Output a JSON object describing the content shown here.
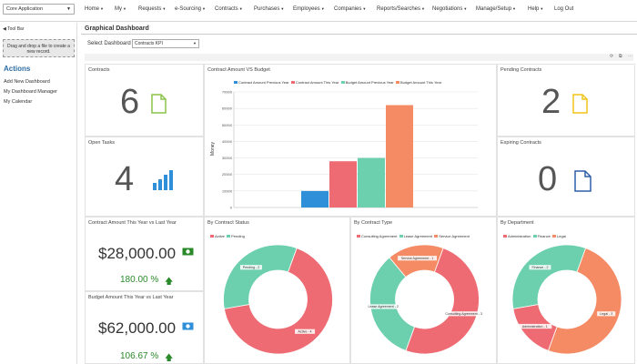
{
  "topbar": {
    "app_select": "Core Application",
    "nav": [
      "Home",
      "My",
      "Requests",
      "e-Sourcing",
      "Contracts",
      "Purchases",
      "Employees",
      "Companies",
      "Reports/Searches",
      "Negotiations",
      "Manage/Setup",
      "Help",
      "Log Out"
    ]
  },
  "sidebar": {
    "toolbar_label": "◀ Tool Bar",
    "dropzone_text": "Drag and drop a file to create a new record.",
    "actions_title": "Actions",
    "links": [
      "Add New Dashboard",
      "My Dashboard Manager",
      "My Calendar"
    ]
  },
  "main": {
    "title": "Graphical Dashboard",
    "select_label": "Select Dashboard",
    "select_value": "Contracts KPI"
  },
  "kpis": {
    "contracts": {
      "title": "Contracts",
      "value": "6"
    },
    "open_tasks": {
      "title": "Open Tasks",
      "value": "4"
    },
    "pending": {
      "title": "Pending Contracts",
      "value": "2"
    },
    "expiring": {
      "title": "Expiring Contracts",
      "value": "0"
    },
    "amount": {
      "title": "Contract Amount This Year vs Last Year",
      "value": "$28,000.00",
      "pct": "180.00 %"
    },
    "budget": {
      "title": "Budget Amount This Year vs Last Year",
      "value": "$62,000.00",
      "pct": "106.67 %"
    }
  },
  "colors": {
    "blue": "#2f8fd8",
    "red": "#ee6b73",
    "teal": "#6ccfae",
    "orange": "#f58b64",
    "green": "#2a8a2a"
  },
  "chart_data": [
    {
      "type": "bar",
      "title": "Contract Amount VS Budget",
      "ylabel": "Money",
      "ylim": [
        0,
        70000
      ],
      "yticks": [
        "70000",
        "60000",
        "50000",
        "40000",
        "30000",
        "20000",
        "10000",
        "0"
      ],
      "series": [
        {
          "name": "Contract Amount Previous Year",
          "values": [
            10000
          ],
          "color": "#2f8fd8"
        },
        {
          "name": "Contract Amount This Year",
          "values": [
            28000
          ],
          "color": "#ee6b73"
        },
        {
          "name": "Budget Amount Previous Year",
          "values": [
            30000
          ],
          "color": "#6ccfae"
        },
        {
          "name": "Budget Amount This Year",
          "values": [
            62000
          ],
          "color": "#f58b64"
        }
      ]
    },
    {
      "type": "pie",
      "title": "By Contract Status",
      "legend": [
        "Active",
        "Pending"
      ],
      "slices": [
        {
          "label": "Active - 4",
          "value": 4,
          "color": "#ee6b73"
        },
        {
          "label": "Pending - 2",
          "value": 2,
          "color": "#6ccfae"
        }
      ]
    },
    {
      "type": "pie",
      "title": "By Contract Type",
      "legend": [
        "Consulting Agreement",
        "Lease Agreement",
        "Service Agreement"
      ],
      "slices": [
        {
          "label": "Consulting Agreement - 3",
          "value": 3,
          "color": "#ee6b73"
        },
        {
          "label": "Lease Agreement - 2",
          "value": 2,
          "color": "#6ccfae"
        },
        {
          "label": "Service Agreement - 1",
          "value": 1,
          "color": "#f58b64"
        }
      ]
    },
    {
      "type": "pie",
      "title": "By Department",
      "legend": [
        "Administration",
        "Finance",
        "Legal"
      ],
      "slices": [
        {
          "label": "Legal - 3",
          "value": 3,
          "color": "#f58b64"
        },
        {
          "label": "Administration - 1",
          "value": 1,
          "color": "#ee6b73"
        },
        {
          "label": "Finance - 2",
          "value": 2,
          "color": "#6ccfae"
        }
      ]
    }
  ]
}
